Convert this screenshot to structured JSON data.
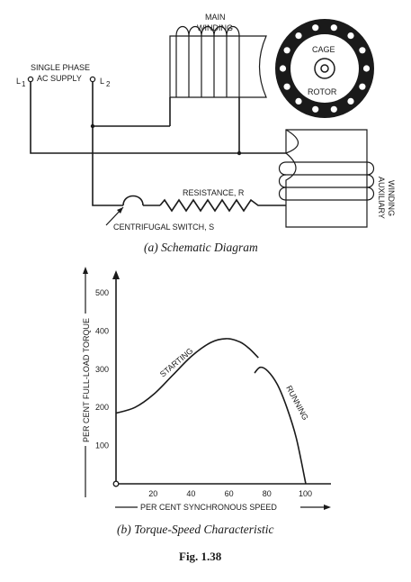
{
  "schematic": {
    "supply_label_line1": "SINGLE PHASE",
    "supply_label_line2": "AC SUPPLY",
    "terminal_1": "L",
    "terminal_1_sub": "1",
    "terminal_2": "L",
    "terminal_2_sub": "2",
    "main_winding_line1": "MAIN",
    "main_winding_line2": "WINDING",
    "rotor_line1": "CAGE",
    "rotor_line2": "ROTOR",
    "aux_winding_line1": "AUXILIARY",
    "aux_winding_line2": "WINDING",
    "resistance_label": "RESISTANCE, R",
    "switch_label": "CENTRIFUGAL SWITCH, S",
    "caption": "(a) Schematic Diagram"
  },
  "graph": {
    "caption": "(b) Torque-Speed Characteristic",
    "figure_label": "Fig. 1.38"
  },
  "chart_data": {
    "type": "line",
    "title": "",
    "xlabel": "PER CENT SYNCHRONOUS SPEED",
    "ylabel": "PER CENT FULL-LOAD TORQUE",
    "xlim": [
      0,
      110
    ],
    "ylim": [
      0,
      550
    ],
    "xticks": [
      20,
      40,
      60,
      80,
      100
    ],
    "yticks": [
      100,
      200,
      300,
      400,
      500
    ],
    "grid": false,
    "series": [
      {
        "name": "STARTING",
        "x": [
          0,
          10,
          20,
          30,
          40,
          50,
          58,
          65,
          70,
          75
        ],
        "y": [
          185,
          200,
          235,
          285,
          335,
          370,
          380,
          372,
          355,
          330
        ]
      },
      {
        "name": "RUNNING",
        "x": [
          73,
          76,
          80,
          85,
          90,
          95,
          100
        ],
        "y": [
          290,
          305,
          295,
          260,
          200,
          120,
          0
        ]
      }
    ]
  }
}
